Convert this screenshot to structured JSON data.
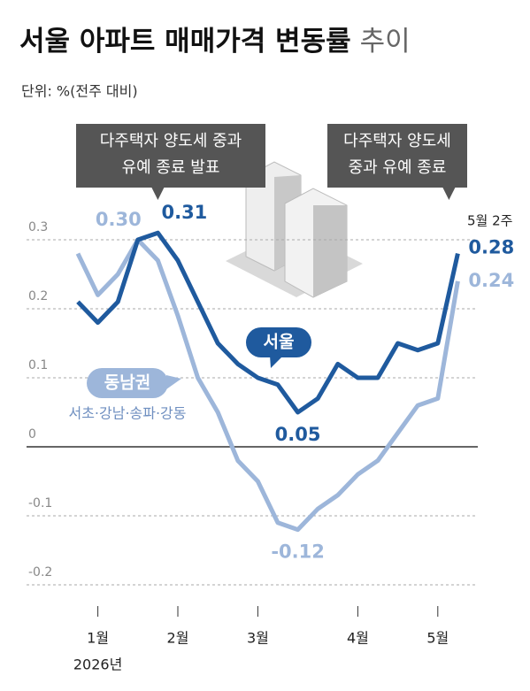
{
  "chart_data": {
    "type": "line",
    "title": "서울 아파트 매매가격 변동률",
    "title_suffix": "추이",
    "subtitle": "단위: %(전주 대비)",
    "categories": [
      null,
      "1월",
      null,
      null,
      null,
      "2월",
      null,
      null,
      null,
      "3월",
      null,
      null,
      null,
      null,
      "4월",
      null,
      null,
      null,
      "5월",
      null
    ],
    "year_label": "2026년",
    "last_point_label": "5월 2주",
    "series": [
      {
        "name": "서울",
        "color": "#1f5a9e",
        "values": [
          0.21,
          0.18,
          0.21,
          0.3,
          0.31,
          0.27,
          0.21,
          0.15,
          0.12,
          0.1,
          0.09,
          0.05,
          0.07,
          0.12,
          0.1,
          0.1,
          0.15,
          0.14,
          0.15,
          0.28
        ],
        "value_labels": [
          null,
          null,
          null,
          null,
          "0.31",
          null,
          null,
          null,
          null,
          null,
          null,
          "0.05",
          null,
          null,
          null,
          null,
          null,
          null,
          null,
          "0.28"
        ]
      },
      {
        "name": "동남권",
        "note": "서초·강남·송파·강동",
        "color": "#9db6da",
        "values": [
          0.28,
          0.22,
          0.25,
          0.3,
          0.27,
          0.19,
          0.1,
          0.05,
          -0.02,
          -0.05,
          -0.11,
          -0.12,
          -0.09,
          -0.07,
          -0.04,
          -0.02,
          0.02,
          0.06,
          0.07,
          0.24
        ],
        "value_labels": [
          null,
          null,
          null,
          "0.30",
          null,
          null,
          null,
          null,
          null,
          null,
          null,
          "-0.12",
          null,
          null,
          null,
          null,
          null,
          null,
          null,
          "0.24"
        ]
      }
    ],
    "annotations": [
      {
        "lines": [
          "다주택자 양도세 중과",
          "유예 종료 발표"
        ]
      },
      {
        "lines": [
          "다주택자 양도세",
          "중과 유예 종료"
        ]
      }
    ],
    "ylim": [
      -0.22,
      0.33
    ],
    "yticks": [
      -0.2,
      -0.1,
      0,
      0.1,
      0.2,
      0.3
    ],
    "grid": true
  }
}
